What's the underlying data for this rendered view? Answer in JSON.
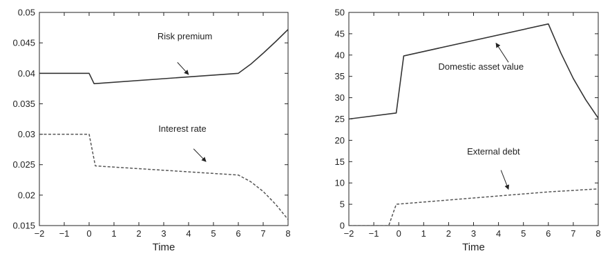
{
  "chart_data": [
    {
      "type": "line",
      "xlabel": "Time",
      "ylabel": "",
      "xlim": [
        -2,
        8
      ],
      "ylim": [
        0.015,
        0.05
      ],
      "xticks": [
        "-2",
        "-1",
        "0",
        "1",
        "2",
        "3",
        "4",
        "5",
        "6",
        "7",
        "8"
      ],
      "yticks": [
        "0.015",
        "0.02",
        "0.025",
        "0.03",
        "0.035",
        "0.04",
        "0.045",
        "0.05"
      ],
      "grid": false,
      "series": [
        {
          "name": "Risk premium",
          "style": "solid",
          "color": "#333333",
          "points": [
            [
              -2,
              0.04
            ],
            [
              0,
              0.04
            ],
            [
              0.2,
              0.0383
            ],
            [
              6,
              0.04
            ],
            [
              6.5,
              0.0415
            ],
            [
              7,
              0.0433
            ],
            [
              7.5,
              0.0452
            ],
            [
              8,
              0.0472
            ]
          ]
        },
        {
          "name": "Interest rate",
          "style": "dashed",
          "color": "#555555",
          "points": [
            [
              -2,
              0.03
            ],
            [
              0,
              0.03
            ],
            [
              0.25,
              0.0248
            ],
            [
              6,
              0.0233
            ],
            [
              6.5,
              0.0222
            ],
            [
              7,
              0.0206
            ],
            [
              7.5,
              0.0185
            ],
            [
              8,
              0.016
            ]
          ]
        }
      ],
      "annotations": [
        {
          "text": "Risk premium",
          "at": [
            3.85,
            0.0456
          ],
          "arrow_from": [
            3.55,
            0.0418
          ],
          "arrow_to": [
            4.0,
            0.0398
          ]
        },
        {
          "text": "Interest rate",
          "at": [
            3.75,
            0.0304
          ],
          "arrow_from": [
            4.2,
            0.0276
          ],
          "arrow_to": [
            4.7,
            0.0255
          ]
        }
      ]
    },
    {
      "type": "line",
      "xlabel": "Time",
      "ylabel": "",
      "xlim": [
        -2,
        8
      ],
      "ylim": [
        0,
        50
      ],
      "xticks": [
        "-2",
        "-1",
        "0",
        "1",
        "2",
        "3",
        "4",
        "5",
        "6",
        "7",
        "8"
      ],
      "yticks": [
        "0",
        "5",
        "10",
        "15",
        "20",
        "25",
        "30",
        "35",
        "40",
        "45",
        "50"
      ],
      "grid": false,
      "series": [
        {
          "name": "Domestic asset value",
          "style": "solid",
          "color": "#333333",
          "points": [
            [
              -2,
              25
            ],
            [
              -0.1,
              26.4
            ],
            [
              0.2,
              39.8
            ],
            [
              6,
              47.3
            ],
            [
              6.5,
              40.5
            ],
            [
              7,
              34.5
            ],
            [
              7.5,
              29.5
            ],
            [
              8,
              25.2
            ]
          ]
        },
        {
          "name": "External debt",
          "style": "dashed",
          "color": "#555555",
          "points": [
            [
              -2,
              0
            ],
            [
              -0.4,
              0
            ],
            [
              -0.1,
              5
            ],
            [
              6,
              7.9
            ],
            [
              8,
              8.6
            ]
          ]
        }
      ],
      "annotations": [
        {
          "text": "Domestic asset value",
          "at": [
            3.3,
            36.6
          ],
          "arrow_from": [
            4.4,
            38.3
          ],
          "arrow_to": [
            3.9,
            42.8
          ]
        },
        {
          "text": "External debt",
          "at": [
            3.8,
            16.7
          ],
          "arrow_from": [
            4.1,
            13.0
          ],
          "arrow_to": [
            4.4,
            8.5
          ]
        }
      ]
    }
  ]
}
